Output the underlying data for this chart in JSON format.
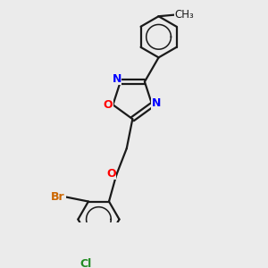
{
  "background_color": "#ebebeb",
  "bond_color": "#1a1a1a",
  "bond_width": 1.6,
  "figsize": [
    3.0,
    3.0
  ],
  "dpi": 100,
  "label_colors": {
    "O": "#ff0000",
    "N": "#0000ff",
    "Br": "#cc6600",
    "Cl": "#228B22",
    "C": "#1a1a1a"
  },
  "font_size": 9.0
}
